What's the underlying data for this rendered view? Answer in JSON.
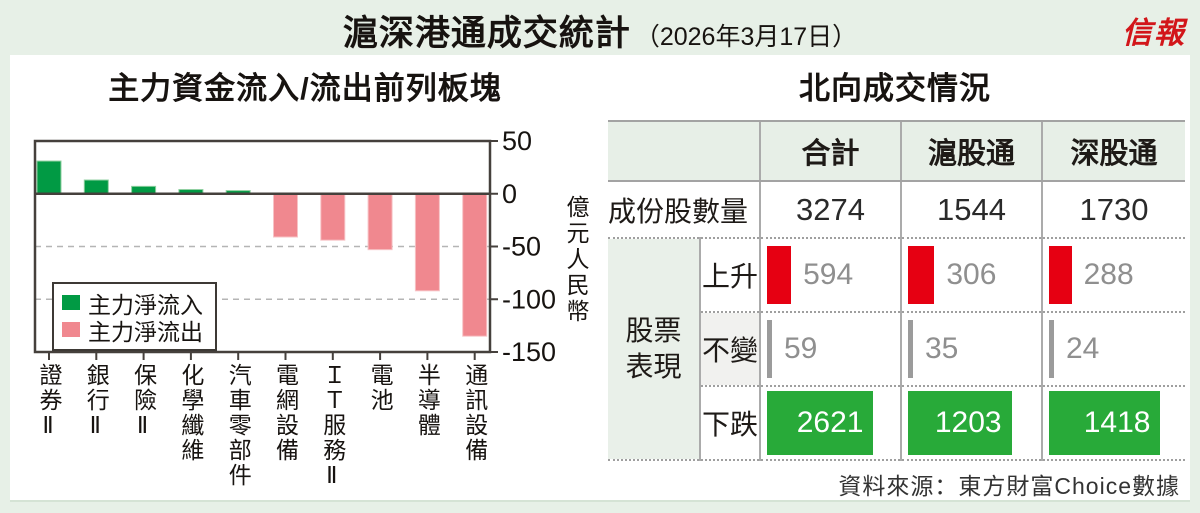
{
  "header": {
    "title": "滬深港通成交統計",
    "date": "（2026年3月17日）",
    "logo": "信報"
  },
  "chart": {
    "title": "主力資金流入/流出前列板塊"
  },
  "table": {
    "title": "北向成交情況",
    "columns": [
      "合計",
      "滬股通",
      "深股通"
    ],
    "constituents": {
      "label": "成份股數量",
      "values": [
        3274,
        1544,
        1730
      ]
    },
    "group_label": "股票表現",
    "performance": [
      {
        "label": "上升",
        "values": [
          594,
          306,
          288
        ],
        "style": "red"
      },
      {
        "label": "不變",
        "values": [
          59,
          35,
          24
        ],
        "style": "neutral"
      },
      {
        "label": "下跌",
        "values": [
          2621,
          1203,
          1418
        ],
        "style": "green"
      }
    ]
  },
  "source": "資料來源：東方財富Choice數據",
  "colors": {
    "page_bg": "#e7f0e7",
    "header_cell_green": "#e7efe7",
    "inflow_green": "#019a44",
    "outflow_pink": "#f0888f",
    "up_red": "#e60012",
    "down_green": "#28aa39",
    "neutral_gray": "#9b9b9b",
    "logo_red": "#d2161a"
  },
  "chart_data": [
    {
      "type": "bar",
      "title": "主力資金流入/流出前列板塊",
      "categories": [
        "證券Ⅱ",
        "銀行Ⅱ",
        "保險Ⅱ",
        "化學纖維",
        "汽車零部件",
        "電網設備",
        "ＩＴ服務Ⅱ",
        "電池",
        "半導體",
        "通訊設備"
      ],
      "values": [
        31,
        13,
        7,
        4,
        3,
        -41,
        -44,
        -53,
        -92,
        -135
      ],
      "xlabel": "",
      "ylabel": "億元人民幣",
      "ylim": [
        -150,
        50
      ],
      "yticks": [
        50,
        0,
        -50,
        -100,
        -150
      ],
      "grid_dashed": [
        -50,
        -100
      ],
      "grid": "dashed horizontal at -50 and -100, solid zero line, y axis labels on right side",
      "legend_position": "lower-left",
      "legend": [
        {
          "label": "主力淨流入",
          "color": "#019a44"
        },
        {
          "label": "主力淨流出",
          "color": "#f0888f"
        }
      ]
    },
    {
      "type": "table",
      "title": "北向成交情況",
      "columns": [
        "",
        "合計",
        "滬股通",
        "深股通"
      ],
      "rows": [
        [
          "成份股數量",
          3274,
          1544,
          1730
        ],
        [
          "股票表現 上升",
          594,
          306,
          288
        ],
        [
          "股票表現 不變",
          59,
          35,
          24
        ],
        [
          "股票表現 下跌",
          2621,
          1203,
          1418
        ]
      ],
      "source": "資料來源：東方財富Choice數據"
    }
  ]
}
